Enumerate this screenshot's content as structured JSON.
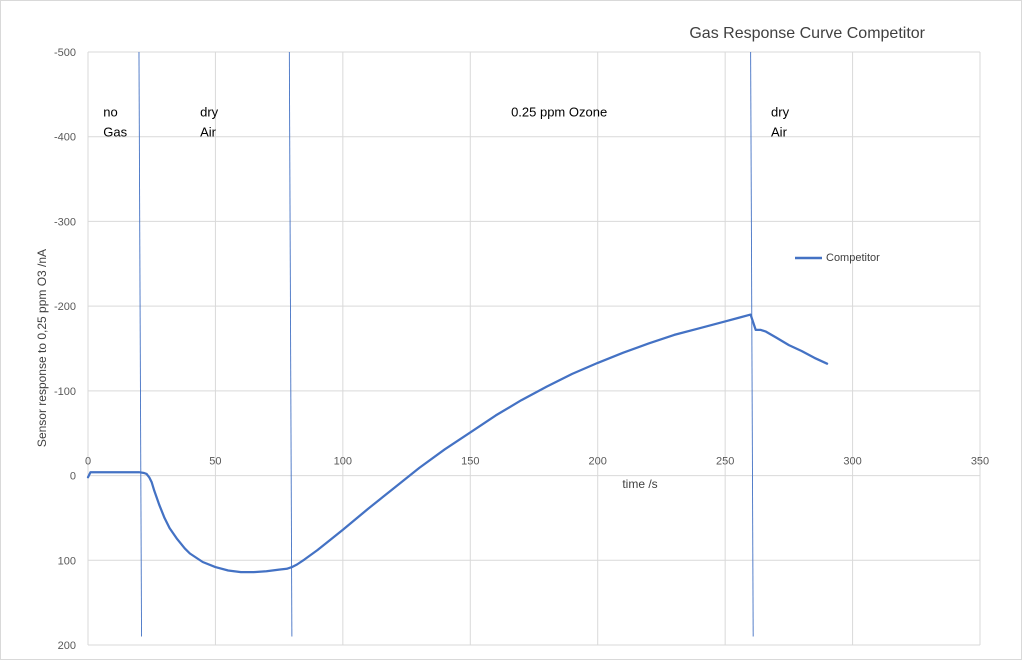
{
  "chart_data": {
    "type": "line",
    "title": "Gas Response Curve Competitor",
    "xlabel": "time /s",
    "ylabel": "Sensor response to 0,25 ppm O3 /nA",
    "xlim": [
      0,
      350
    ],
    "ylim": [
      200,
      -500
    ],
    "y_reversed": true,
    "x_ticks": [
      "0",
      "50",
      "100",
      "150",
      "200",
      "250",
      "300",
      "350"
    ],
    "y_ticks": [
      "-500",
      "-400",
      "-300",
      "-200",
      "-100",
      "0",
      "100",
      "200"
    ],
    "x_tick_values": [
      0,
      50,
      100,
      150,
      200,
      250,
      300,
      350
    ],
    "y_tick_values": [
      -500,
      -400,
      -300,
      -200,
      -100,
      0,
      100,
      200
    ],
    "grid": true,
    "legend_position": "right",
    "series": [
      {
        "name": "Competitor",
        "color": "#4472c4",
        "x": [
          0,
          1,
          5,
          10,
          15,
          20,
          22,
          23,
          24,
          25,
          26,
          28,
          30,
          32,
          35,
          38,
          40,
          45,
          50,
          55,
          60,
          65,
          70,
          75,
          78,
          80,
          82,
          85,
          90,
          95,
          100,
          110,
          120,
          130,
          140,
          150,
          160,
          170,
          180,
          190,
          200,
          210,
          220,
          230,
          240,
          250,
          255,
          260,
          262,
          264,
          266,
          270,
          275,
          280,
          285,
          290
        ],
        "y": [
          2,
          -4,
          -4,
          -4,
          -4,
          -4,
          -3,
          -2,
          2,
          8,
          18,
          35,
          50,
          62,
          75,
          86,
          92,
          102,
          108,
          112,
          114,
          114,
          113,
          111,
          110,
          108,
          105,
          99,
          88,
          76,
          64,
          39,
          15,
          -9,
          -31,
          -51,
          -71,
          -89,
          -105,
          -120,
          -133,
          -145,
          -156,
          -166,
          -174,
          -182,
          -186,
          -190,
          -172,
          -172,
          -170,
          -163,
          -154,
          -147,
          -139,
          -132
        ]
      }
    ],
    "vertical_markers": [
      {
        "x_top": 20,
        "x_bottom": 21
      },
      {
        "x_top": 79,
        "x_bottom": 80
      },
      {
        "x_top": 260,
        "x_bottom": 261
      }
    ],
    "annotations": [
      {
        "lines": [
          "no",
          "Gas"
        ],
        "x": 6,
        "y": -424
      },
      {
        "lines": [
          "dry",
          "Air"
        ],
        "x": 44,
        "y": -424
      },
      {
        "lines": [
          "0.25 ppm Ozone"
        ],
        "x": 166,
        "y": -424
      },
      {
        "lines": [
          "dry",
          "Air"
        ],
        "x": 268,
        "y": -424
      }
    ]
  }
}
